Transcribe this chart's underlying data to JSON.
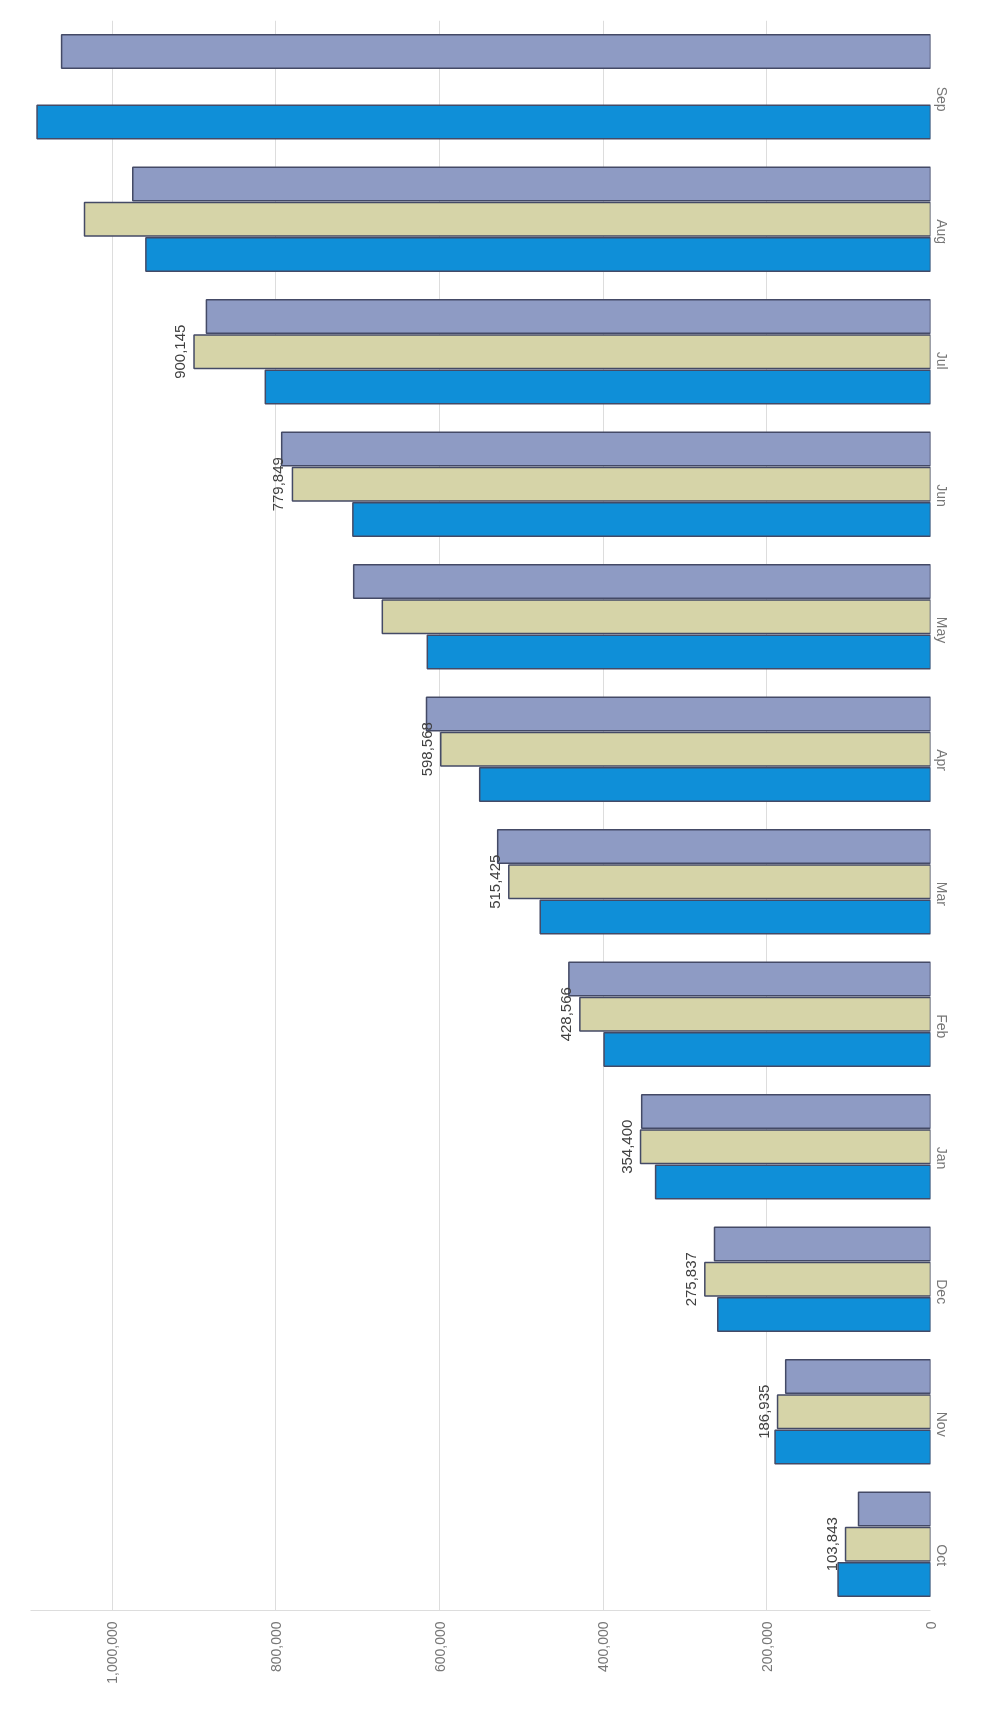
{
  "chart_data": {
    "type": "bar",
    "orientation": "horizontal",
    "categories": [
      "Sep",
      "Aug",
      "Jul",
      "Jun",
      "May",
      "Apr",
      "Mar",
      "Feb",
      "Jan",
      "Dec",
      "Nov",
      "Oct"
    ],
    "series": [
      {
        "color": "#8e9bc4",
        "values": [
          1062000,
          975000,
          885000,
          793000,
          705000,
          616000,
          529000,
          442000,
          353000,
          264000,
          177000,
          88000
        ]
      },
      {
        "color": "#d6d4a8",
        "values": [
          null,
          1034000,
          900145,
          779849,
          670000,
          598568,
          515425,
          428566,
          354400,
          275837,
          186935,
          103843
        ],
        "value_labels": [
          null,
          null,
          "900,145",
          "779,849",
          null,
          "598,568",
          "515,425",
          "428,566",
          "354,400",
          "275,837",
          "186,935",
          "103,843"
        ]
      },
      {
        "color": "#0f8fd8",
        "values": [
          1092000,
          959000,
          813000,
          706000,
          615000,
          551000,
          477000,
          399000,
          336000,
          260000,
          190000,
          113000
        ]
      }
    ],
    "xlim": [
      1100000,
      0
    ],
    "xticks": [
      {
        "value": 0,
        "label": "0"
      },
      {
        "value": 200000,
        "label": "200,000"
      },
      {
        "value": 400000,
        "label": "400,000"
      },
      {
        "value": 600000,
        "label": "600,000"
      },
      {
        "value": 800000,
        "label": "800,000"
      },
      {
        "value": 1000000,
        "label": "1,000,000"
      }
    ],
    "grid": "x"
  }
}
